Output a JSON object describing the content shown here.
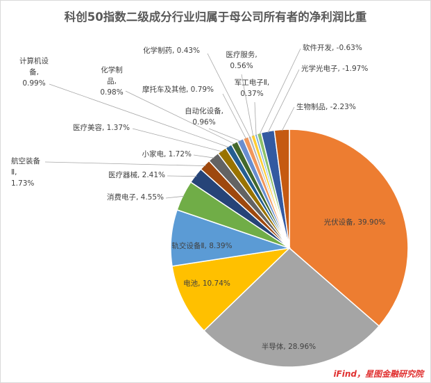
{
  "chart_data": {
    "type": "pie",
    "title": "科创50指数二级成分行业归属于母公司所有者的净利润比重",
    "slices": [
      {
        "category": "光伏设备",
        "label": "光伏设备, 39.90%",
        "value": 39.9,
        "color": "#ED7D31"
      },
      {
        "category": "半导体",
        "label": "半导体, 28.96%",
        "value": 28.96,
        "color": "#A5A5A5"
      },
      {
        "category": "电池",
        "label": "电池, 10.74%",
        "value": 10.74,
        "color": "#FFC000"
      },
      {
        "category": "轨交设备Ⅱ",
        "label": "轨交设备Ⅱ, 8.39%",
        "value": 8.39,
        "color": "#5B9BD5"
      },
      {
        "category": "消费电子",
        "label": "消费电子, 4.55%",
        "value": 4.55,
        "color": "#70AD47"
      },
      {
        "category": "医疗器械",
        "label": "医疗器械, 2.41%",
        "value": 2.41,
        "color": "#264478"
      },
      {
        "category": "航空装备Ⅱ",
        "label": "航空装备Ⅱ, 1.73%",
        "value": 1.73,
        "color": "#9E480E"
      },
      {
        "category": "小家电",
        "label": "小家电, 1.72%",
        "value": 1.72,
        "color": "#636363"
      },
      {
        "category": "医疗美容",
        "label": "医疗美容, 1.37%",
        "value": 1.37,
        "color": "#997300"
      },
      {
        "category": "计算机设备",
        "label": "计算机设备, 0.99%",
        "value": 0.99,
        "color": "#255E91"
      },
      {
        "category": "化学制品",
        "label": "化学制品, 0.98%",
        "value": 0.98,
        "color": "#43682B"
      },
      {
        "category": "自动化设备",
        "label": "自动化设备, 0.96%",
        "value": 0.96,
        "color": "#698ED0"
      },
      {
        "category": "摩托车及其他",
        "label": "摩托车及其他, 0.79%",
        "value": 0.79,
        "color": "#F1975A"
      },
      {
        "category": "化学制药",
        "label": "化学制药, 0.43%",
        "value": 0.43,
        "color": "#B7B7B7"
      },
      {
        "category": "医疗服务",
        "label": "医疗服务, 0.56%",
        "value": 0.56,
        "color": "#FFCD33"
      },
      {
        "category": "军工电子Ⅱ",
        "label": "军工电子Ⅱ, 0.37%",
        "value": 0.37,
        "color": "#7CAFDD"
      },
      {
        "category": "软件开发",
        "label": "软件开发, -0.63%",
        "value": -0.63,
        "color": "#8CC168"
      },
      {
        "category": "光学光电子",
        "label": "光学光电子, -1.97%",
        "value": -1.97,
        "color": "#335AA1"
      },
      {
        "category": "生物制品",
        "label": "生物制品, -2.23%",
        "value": -2.23,
        "color": "#C55A11"
      }
    ],
    "legend": "none"
  },
  "source_note": "iFind，星图金融研究院"
}
